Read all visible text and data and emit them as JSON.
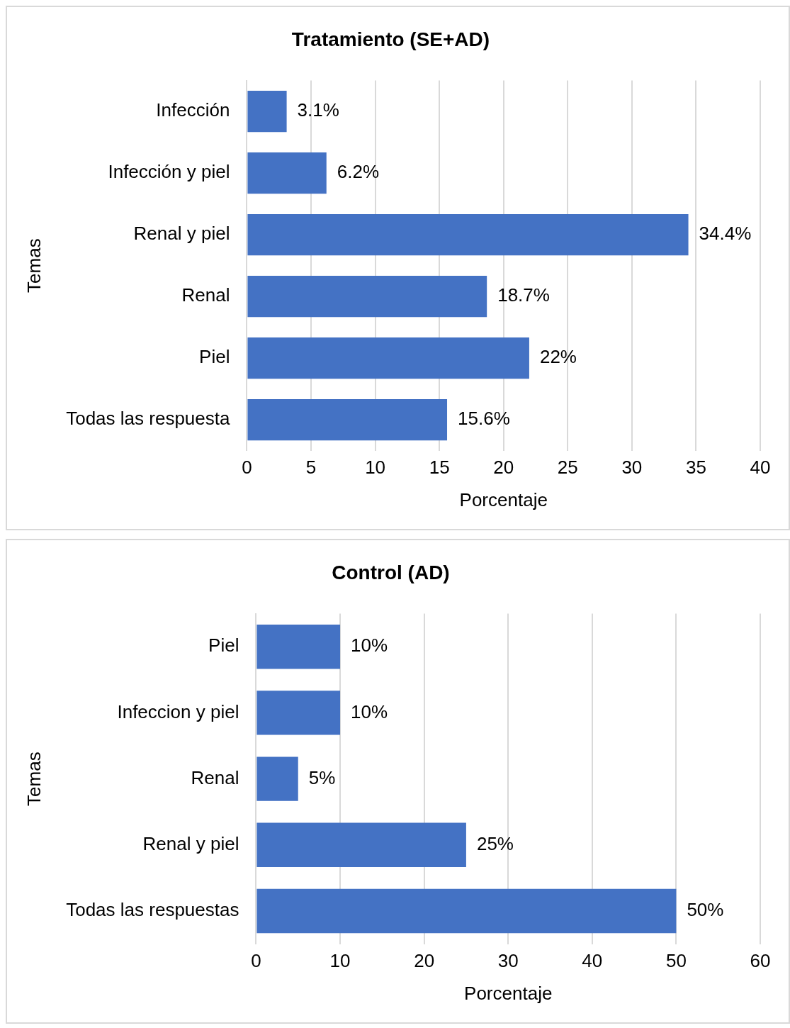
{
  "chart_data": [
    {
      "type": "bar",
      "orientation": "horizontal",
      "title": "Tratamiento (SE+AD)",
      "xlabel": "Porcentaje",
      "ylabel": "Temas",
      "categories": [
        "Infección",
        "Infección y piel",
        "Renal y piel",
        "Renal",
        "Piel",
        "Todas las respuesta"
      ],
      "values": [
        3.1,
        6.2,
        34.4,
        18.7,
        22,
        15.6
      ],
      "value_labels": [
        "3.1%",
        "6.2%",
        "34.4%",
        "18.7%",
        "22%",
        "15.6%"
      ],
      "color": "#4472c4",
      "xlim": [
        0,
        40
      ],
      "xticks": [
        0,
        5,
        10,
        15,
        20,
        25,
        30,
        35,
        40
      ],
      "grid": "x"
    },
    {
      "type": "bar",
      "orientation": "horizontal",
      "title": "Control (AD)",
      "xlabel": "Porcentaje",
      "ylabel": "Temas",
      "categories": [
        "Piel",
        "Infeccion y piel",
        "Renal",
        "Renal y piel",
        "Todas las respuestas"
      ],
      "values": [
        10,
        10,
        5,
        25,
        50
      ],
      "value_labels": [
        "10%",
        "10%",
        "5%",
        "25%",
        "50%"
      ],
      "color": "#4472c4",
      "xlim": [
        0,
        60
      ],
      "xticks": [
        0,
        10,
        20,
        30,
        40,
        50,
        60
      ],
      "grid": "x"
    }
  ]
}
